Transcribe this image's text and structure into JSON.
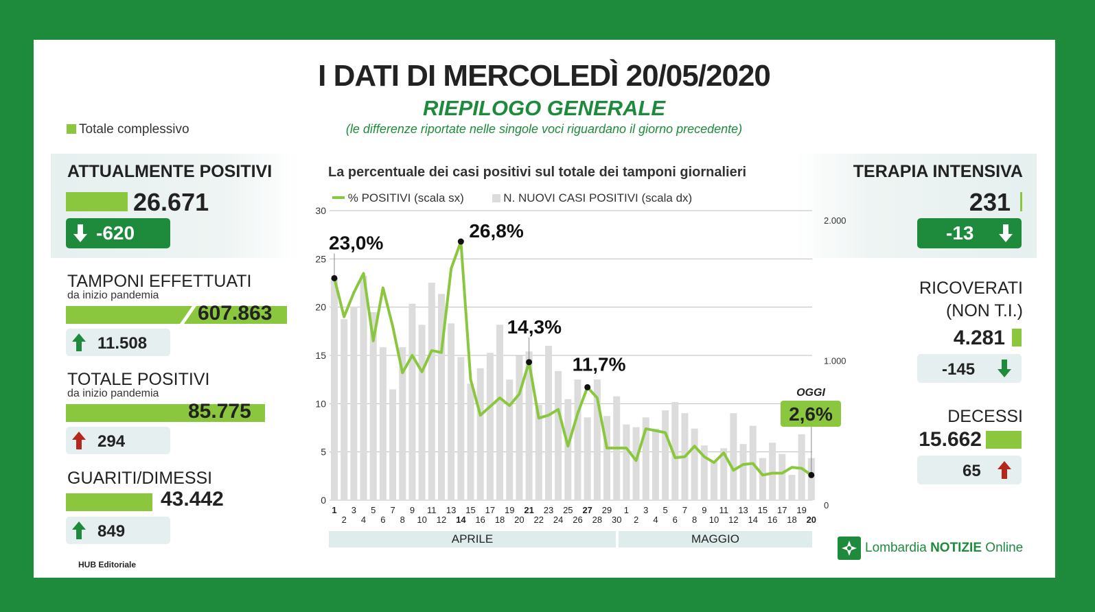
{
  "header": {
    "title": "I DATI DI MERCOLEDÌ 20/05/2020",
    "subtitle": "RIEPILOGO GENERALE",
    "note": "(le differenze riportate nelle singole voci riguardano il giorno precedente)",
    "legend_total": "Totale complessivo"
  },
  "left": {
    "attualmente": {
      "label": "ATTUALMENTE POSITIVI",
      "value": "26.671",
      "delta": "-620",
      "direction": "down"
    },
    "tamponi": {
      "label": "TAMPONI EFFETTUATI",
      "sub": "da inizio pandemia",
      "value": "607.863",
      "delta": "11.508",
      "direction": "up"
    },
    "totale": {
      "label": "TOTALE POSITIVI",
      "sub": "da inizio pandemia",
      "value": "85.775",
      "delta": "294",
      "direction": "up"
    },
    "guariti": {
      "label": "GUARITI/DIMESSI",
      "value": "43.442",
      "delta": "849",
      "direction": "up"
    }
  },
  "right": {
    "terapia": {
      "label": "TERAPIA INTENSIVA",
      "value": "231",
      "delta": "-13",
      "direction": "down"
    },
    "ricoverati": {
      "label1": "RICOVERATI",
      "label2": "(NON T.I.)",
      "value": "4.281",
      "delta": "-145",
      "direction": "down"
    },
    "decessi": {
      "label": "DECESSI",
      "value": "15.662",
      "delta": "65",
      "direction": "up"
    }
  },
  "footer": {
    "hub": "HUB Editoriale",
    "logo_brand": "Lombardia",
    "logo_bold": "NOTIZIE",
    "logo_tail": "Online"
  },
  "colors": {
    "green_dark": "#1e8a3c",
    "green_light": "#8bc63f",
    "bar_grey": "#dcdcdc",
    "arrow_up_green": "#1e8a3c",
    "arrow_up_red": "#b5271c"
  },
  "chart_data": {
    "type": "bar+line",
    "title": "La percentuale dei casi positivi sul totale dei tamponi giornalieri",
    "legend": [
      "% POSITIVI (scala sx)",
      "N. NUOVI CASI POSITIVI (scala dx)"
    ],
    "oggi_label": "OGGI",
    "months": [
      "APRILE",
      "MAGGIO"
    ],
    "y_left": {
      "range": [
        0,
        30
      ],
      "ticks": [
        "0",
        "5",
        "10",
        "15",
        "20",
        "25",
        "30"
      ]
    },
    "y_right": {
      "range": [
        0,
        2000
      ],
      "ticks": [
        "0",
        "1.000",
        "2.000"
      ]
    },
    "x_labels": [
      "1",
      "2",
      "3",
      "4",
      "5",
      "6",
      "7",
      "8",
      "9",
      "10",
      "11",
      "12",
      "13",
      "14",
      "15",
      "16",
      "17",
      "18",
      "19",
      "20",
      "21",
      "22",
      "23",
      "24",
      "25",
      "26",
      "27",
      "28",
      "29",
      "30",
      "1",
      "2",
      "3",
      "4",
      "5",
      "6",
      "7",
      "8",
      "9",
      "10",
      "11",
      "12",
      "13",
      "14",
      "15",
      "16",
      "17",
      "18",
      "19",
      "20"
    ],
    "bold_x_indices": [
      0,
      13,
      20,
      26,
      49
    ],
    "percent_positive": [
      23.0,
      19.0,
      21.5,
      23.5,
      16.5,
      22.0,
      18.0,
      13.2,
      15.0,
      13.3,
      15.5,
      15.3,
      24.0,
      26.8,
      12.5,
      8.8,
      9.7,
      10.6,
      9.8,
      11.0,
      14.3,
      8.5,
      8.8,
      9.4,
      5.6,
      9.0,
      11.7,
      10.6,
      5.4,
      5.4,
      5.4,
      4.1,
      7.4,
      7.2,
      7.0,
      4.4,
      4.5,
      5.6,
      4.5,
      3.9,
      4.9,
      3.1,
      3.7,
      3.8,
      2.6,
      2.8,
      2.8,
      3.4,
      3.3,
      2.6
    ],
    "new_cases": [
      1580,
      1290,
      1380,
      1600,
      1340,
      1090,
      790,
      1090,
      1400,
      1250,
      1550,
      1470,
      1260,
      1020,
      830,
      940,
      1050,
      1250,
      860,
      1030,
      1060,
      680,
      1100,
      920,
      720,
      860,
      590,
      860,
      600,
      740,
      540,
      520,
      590,
      510,
      640,
      700,
      620,
      510,
      390,
      280,
      370,
      620,
      400,
      530,
      300,
      410,
      330,
      180,
      470,
      300
    ],
    "callouts": [
      {
        "index": 0,
        "text": "23,0%"
      },
      {
        "index": 13,
        "text": "26,8%"
      },
      {
        "index": 20,
        "text": "14,3%"
      },
      {
        "index": 26,
        "text": "11,7%"
      },
      {
        "index": 49,
        "text": "2,6%"
      }
    ]
  }
}
